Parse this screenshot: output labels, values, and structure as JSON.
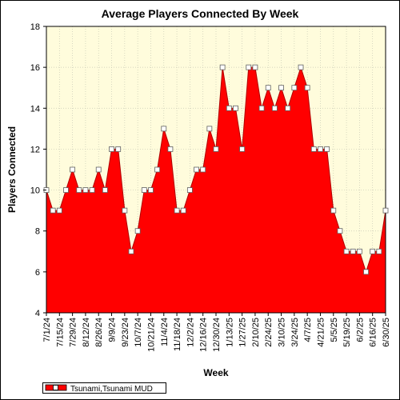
{
  "chart_data": {
    "type": "area",
    "title": "Average Players Connected By Week",
    "xlabel": "Week",
    "ylabel": "Players Connected",
    "ylim": [
      4,
      18
    ],
    "yticks": [
      4,
      6,
      8,
      10,
      12,
      14,
      16,
      18
    ],
    "grid": true,
    "legend_position": "bottom-left",
    "x_tick_labels": [
      "7/1/24",
      "7/15/24",
      "7/29/24",
      "8/12/24",
      "8/26/24",
      "9/9/24",
      "9/23/24",
      "10/7/24",
      "10/21/24",
      "11/4/24",
      "11/18/24",
      "12/2/24",
      "12/16/24",
      "12/30/24",
      "1/13/25",
      "1/27/25",
      "2/10/25",
      "2/24/25",
      "3/10/25",
      "3/24/25",
      "4/7/25",
      "4/21/25",
      "5/5/25",
      "5/19/25",
      "6/2/25",
      "6/16/25",
      "6/30/25"
    ],
    "x": [
      "7/1/24",
      "7/8/24",
      "7/15/24",
      "7/22/24",
      "7/29/24",
      "8/5/24",
      "8/12/24",
      "8/19/24",
      "8/26/24",
      "9/2/24",
      "9/9/24",
      "9/16/24",
      "9/23/24",
      "9/30/24",
      "10/7/24",
      "10/14/24",
      "10/21/24",
      "10/28/24",
      "11/4/24",
      "11/11/24",
      "11/18/24",
      "11/25/24",
      "12/2/24",
      "12/9/24",
      "12/16/24",
      "12/23/24",
      "12/30/24",
      "1/6/25",
      "1/13/25",
      "1/20/25",
      "1/27/25",
      "2/3/25",
      "2/10/25",
      "2/17/25",
      "2/24/25",
      "3/3/25",
      "3/10/25",
      "3/17/25",
      "3/24/25",
      "3/31/25",
      "4/7/25",
      "4/14/25",
      "4/21/25",
      "4/28/25",
      "5/5/25",
      "5/12/25",
      "5/19/25",
      "5/26/25",
      "6/2/25",
      "6/9/25",
      "6/16/25",
      "6/23/25",
      "6/30/25"
    ],
    "series": [
      {
        "name": "Tsunami,Tsunami MUD",
        "color": "#ff0000",
        "values": [
          10,
          9,
          9,
          10,
          11,
          10,
          10,
          10,
          11,
          10,
          12,
          12,
          9,
          7,
          8,
          10,
          10,
          11,
          13,
          12,
          9,
          9,
          10,
          11,
          11,
          13,
          12,
          16,
          14,
          14,
          12,
          16,
          16,
          14,
          15,
          14,
          15,
          14,
          15,
          16,
          15,
          12,
          12,
          12,
          9,
          8,
          7,
          7,
          7,
          6,
          7,
          7,
          9
        ]
      }
    ]
  }
}
